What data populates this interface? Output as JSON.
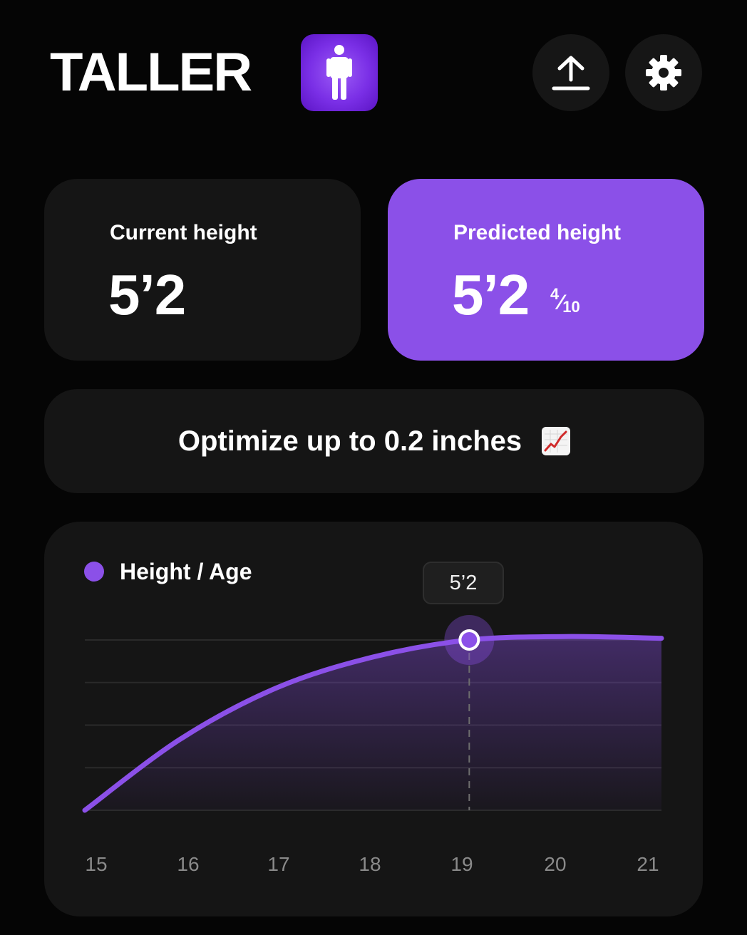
{
  "header": {
    "app_title": "TALLER",
    "logo_icon": "person-standing-icon",
    "share_icon": "upload-icon",
    "settings_icon": "gear-icon"
  },
  "current_height": {
    "label": "Current height",
    "value": "5’2"
  },
  "predicted_height": {
    "label": "Predicted height",
    "value": "5’2",
    "fraction_numerator": "4",
    "fraction_denominator": "10"
  },
  "optimize": {
    "text": "Optimize up to 0.2 inches",
    "icon": "chart-increasing-icon"
  },
  "colors": {
    "accent": "#8b50e8",
    "background": "#050505",
    "card": "#151515"
  },
  "chart_data": {
    "type": "line",
    "title": "",
    "xlabel": "",
    "ylabel": "",
    "legend": "Height / Age",
    "legend_position": "top-left",
    "grid": true,
    "x": [
      15,
      16,
      17,
      18,
      19,
      20,
      21
    ],
    "tick_labels": [
      "15",
      "16",
      "17",
      "18",
      "19",
      "20",
      "21"
    ],
    "series": [
      {
        "name": "Height / Age",
        "values": [
          0,
          0.42,
          0.72,
          0.9,
          1.0,
          1.02,
          1.01
        ]
      }
    ],
    "ylim": [
      0,
      1.0
    ],
    "highlight": {
      "x": 19,
      "label": "5’2"
    }
  }
}
